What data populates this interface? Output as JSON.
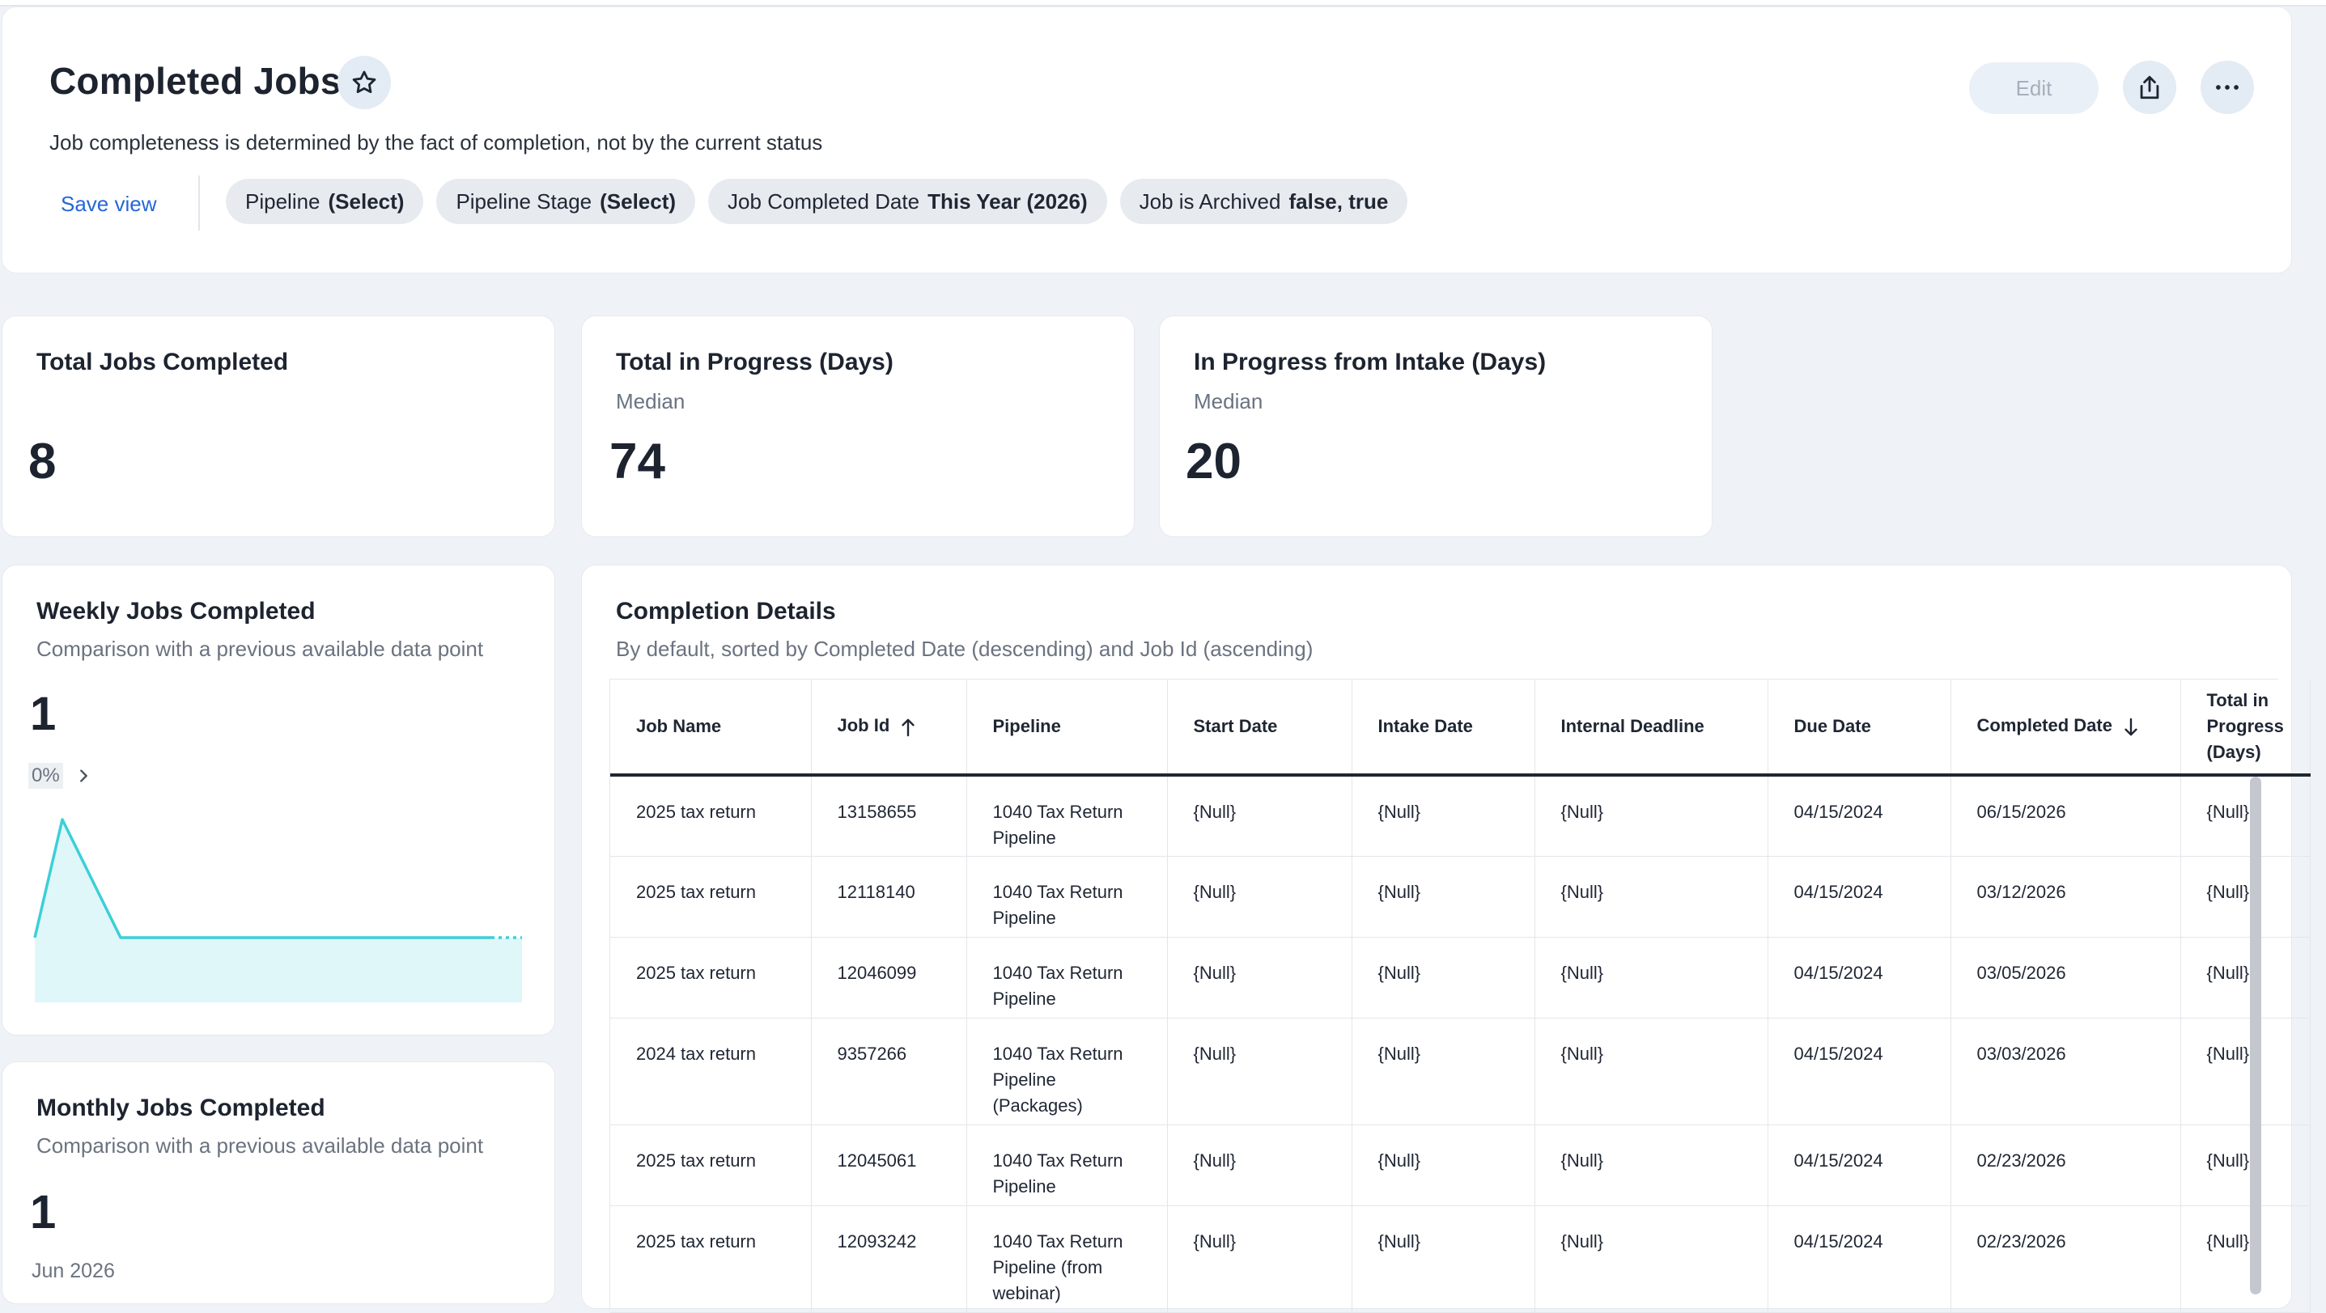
{
  "header": {
    "title": "Completed Jobs",
    "subtitle": "Job completeness is determined by the fact of completion, not by the current status",
    "save_view": "Save view",
    "edit_label": "Edit",
    "filters": [
      {
        "label": "Pipeline",
        "value": "(Select)"
      },
      {
        "label": "Pipeline Stage",
        "value": "(Select)"
      },
      {
        "label": "Job Completed Date",
        "value": "This Year (2026)"
      },
      {
        "label": "Job is Archived",
        "value": "false, true"
      }
    ]
  },
  "kpis": [
    {
      "title": "Total Jobs Completed",
      "subtitle": "",
      "value": "8"
    },
    {
      "title": "Total in Progress (Days)",
      "subtitle": "Median",
      "value": "74"
    },
    {
      "title": "In Progress from Intake (Days)",
      "subtitle": "Median",
      "value": "20"
    }
  ],
  "weekly": {
    "title": "Weekly Jobs Completed",
    "subtitle": "Comparison with a previous available data point",
    "value": "1",
    "change": "0%",
    "color": "#3ccfd8"
  },
  "monthly": {
    "title": "Monthly Jobs Completed",
    "subtitle": "Comparison with a previous available data point",
    "value": "1",
    "period": "Jun 2026"
  },
  "details": {
    "title": "Completion Details",
    "subtitle": "By default, sorted by Completed Date (descending) and Job Id (ascending)",
    "columns": [
      "Job Name",
      "Job Id",
      "Pipeline",
      "Start Date",
      "Intake Date",
      "Internal Deadline",
      "Due Date",
      "Completed Date",
      "Total in Progress (Days)"
    ],
    "rows": [
      [
        "2025 tax return",
        "13158655",
        "1040 Tax Return Pipeline",
        "{Null}",
        "{Null}",
        "{Null}",
        "04/15/2024",
        "06/15/2026",
        "{Null}"
      ],
      [
        "2025 tax return",
        "12118140",
        "1040 Tax Return Pipeline",
        "{Null}",
        "{Null}",
        "{Null}",
        "04/15/2024",
        "03/12/2026",
        "{Null}"
      ],
      [
        "2025 tax return",
        "12046099",
        "1040 Tax Return Pipeline",
        "{Null}",
        "{Null}",
        "{Null}",
        "04/15/2024",
        "03/05/2026",
        "{Null}"
      ],
      [
        "2024 tax return",
        "9357266",
        "1040 Tax Return Pipeline (Packages)",
        "{Null}",
        "{Null}",
        "{Null}",
        "04/15/2024",
        "03/03/2026",
        "{Null}"
      ],
      [
        "2025 tax return",
        "12045061",
        "1040 Tax Return Pipeline",
        "{Null}",
        "{Null}",
        "{Null}",
        "04/15/2024",
        "02/23/2026",
        "{Null}"
      ],
      [
        "2025 tax return",
        "12093242",
        "1040 Tax Return Pipeline (from webinar)",
        "{Null}",
        "{Null}",
        "{Null}",
        "04/15/2024",
        "02/23/2026",
        "{Null}"
      ]
    ]
  }
}
